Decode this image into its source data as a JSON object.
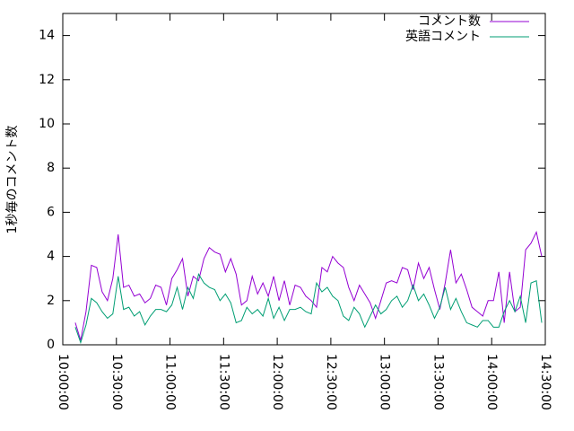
{
  "chart_data": {
    "type": "line",
    "ylabel": "1秒毎のコメント数",
    "x": [
      "10:07:00",
      "10:10:00",
      "10:13:00",
      "10:16:00",
      "10:19:00",
      "10:22:00",
      "10:25:00",
      "10:28:00",
      "10:31:00",
      "10:34:00",
      "10:37:00",
      "10:40:00",
      "10:43:00",
      "10:46:00",
      "10:49:00",
      "10:52:00",
      "10:55:00",
      "10:58:00",
      "11:01:00",
      "11:04:00",
      "11:07:00",
      "11:10:00",
      "11:13:00",
      "11:16:00",
      "11:19:00",
      "11:22:00",
      "11:25:00",
      "11:28:00",
      "11:31:00",
      "11:34:00",
      "11:37:00",
      "11:40:00",
      "11:43:00",
      "11:46:00",
      "11:49:00",
      "11:52:00",
      "11:55:00",
      "11:58:00",
      "12:01:00",
      "12:04:00",
      "12:07:00",
      "12:10:00",
      "12:13:00",
      "12:16:00",
      "12:19:00",
      "12:22:00",
      "12:25:00",
      "12:28:00",
      "12:31:00",
      "12:34:00",
      "12:37:00",
      "12:40:00",
      "12:43:00",
      "12:46:00",
      "12:49:00",
      "12:52:00",
      "12:55:00",
      "12:58:00",
      "13:01:00",
      "13:04:00",
      "13:07:00",
      "13:10:00",
      "13:13:00",
      "13:16:00",
      "13:19:00",
      "13:22:00",
      "13:25:00",
      "13:28:00",
      "13:31:00",
      "13:34:00",
      "13:37:00",
      "13:40:00",
      "13:43:00",
      "13:46:00",
      "13:49:00",
      "13:52:00",
      "13:55:00",
      "13:58:00",
      "14:01:00",
      "14:04:00",
      "14:07:00",
      "14:10:00",
      "14:13:00",
      "14:16:00",
      "14:19:00",
      "14:22:00",
      "14:25:00",
      "14:28:00"
    ],
    "series": [
      {
        "name": "コメント数",
        "color": "#9400d3",
        "values": [
          1.0,
          0.2,
          1.5,
          3.6,
          3.5,
          2.4,
          2.0,
          3.0,
          5.0,
          2.6,
          2.7,
          2.2,
          2.3,
          1.9,
          2.1,
          2.7,
          2.6,
          1.8,
          3.0,
          3.4,
          3.9,
          2.2,
          3.1,
          2.9,
          3.9,
          4.4,
          4.2,
          4.1,
          3.3,
          3.9,
          3.2,
          1.8,
          2.0,
          3.1,
          2.3,
          2.8,
          2.2,
          3.1,
          2.0,
          2.9,
          1.8,
          2.7,
          2.6,
          2.2,
          2.0,
          1.7,
          3.5,
          3.3,
          4.0,
          3.7,
          3.5,
          2.6,
          2.0,
          2.7,
          2.3,
          1.9,
          1.2,
          2.0,
          2.8,
          2.9,
          2.8,
          3.5,
          3.4,
          2.5,
          3.7,
          3.0,
          3.5,
          2.5,
          1.6,
          2.8,
          4.3,
          2.8,
          3.2,
          2.5,
          1.7,
          1.5,
          1.3,
          2.0,
          2.0,
          3.3,
          1.0,
          3.3,
          1.5,
          1.7,
          4.3,
          4.6,
          5.1,
          4.0
        ]
      },
      {
        "name": "英語コメント",
        "color": "#009e73",
        "values": [
          0.8,
          0.1,
          0.9,
          2.1,
          1.9,
          1.5,
          1.2,
          1.4,
          3.1,
          1.6,
          1.7,
          1.3,
          1.5,
          0.9,
          1.3,
          1.6,
          1.6,
          1.5,
          1.8,
          2.6,
          1.6,
          2.6,
          2.1,
          3.2,
          2.8,
          2.6,
          2.5,
          2.0,
          2.3,
          1.9,
          1.0,
          1.1,
          1.7,
          1.4,
          1.6,
          1.3,
          2.1,
          1.2,
          1.7,
          1.1,
          1.6,
          1.6,
          1.7,
          1.5,
          1.4,
          2.8,
          2.4,
          2.6,
          2.2,
          2.0,
          1.3,
          1.1,
          1.7,
          1.4,
          0.8,
          1.3,
          1.8,
          1.4,
          1.6,
          2.0,
          2.2,
          1.7,
          2.0,
          2.7,
          2.0,
          2.3,
          1.8,
          1.2,
          1.7,
          2.6,
          1.6,
          2.1,
          1.5,
          1.0,
          0.9,
          0.8,
          1.1,
          1.1,
          0.8,
          0.8,
          1.5,
          2.0,
          1.5,
          2.2,
          1.0,
          2.8,
          2.9,
          1.0
        ]
      }
    ],
    "xlim": [
      "10:00:00",
      "14:30:00"
    ],
    "xticks": [
      "10:00:00",
      "10:30:00",
      "11:00:00",
      "11:30:00",
      "12:00:00",
      "12:30:00",
      "13:00:00",
      "13:30:00",
      "14:00:00",
      "14:30:00"
    ],
    "ylim": [
      0,
      15
    ],
    "yticks": [
      0,
      2,
      4,
      6,
      8,
      10,
      12,
      14
    ],
    "grid": false,
    "legend": "top-right"
  }
}
